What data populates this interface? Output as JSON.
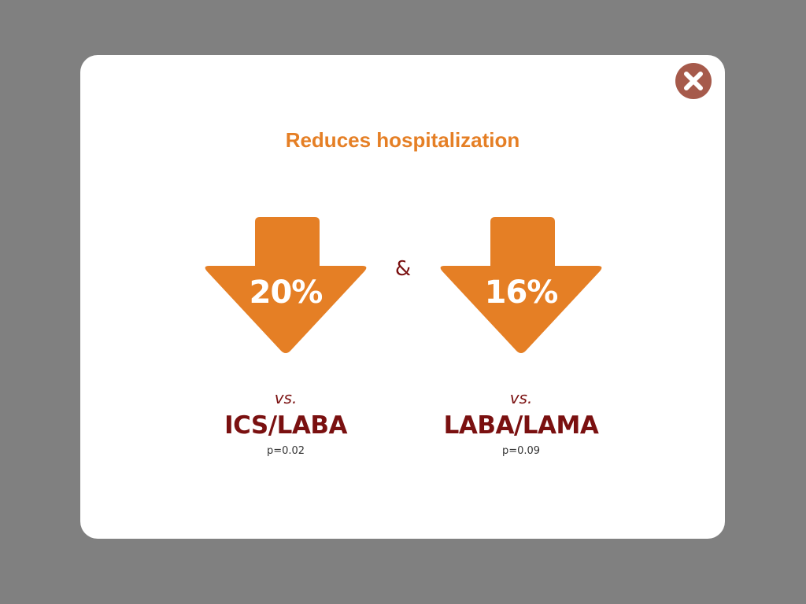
{
  "dialog": {
    "title": "Reduces hospitalization",
    "close_icon": "close-icon",
    "separator": "&"
  },
  "colors": {
    "accent": "#E57F25",
    "dark_red": "#7A1010",
    "close_bg": "#A65A4B",
    "backdrop": "#808080",
    "card": "#FFFFFF"
  },
  "comparisons": [
    {
      "reduction": "20%",
      "vs_label": "vs.",
      "comparator": "ICS/LABA",
      "p_value": "p=0.02"
    },
    {
      "reduction": "16%",
      "vs_label": "vs.",
      "comparator": "LABA/LAMA",
      "p_value": "p=0.09"
    }
  ]
}
